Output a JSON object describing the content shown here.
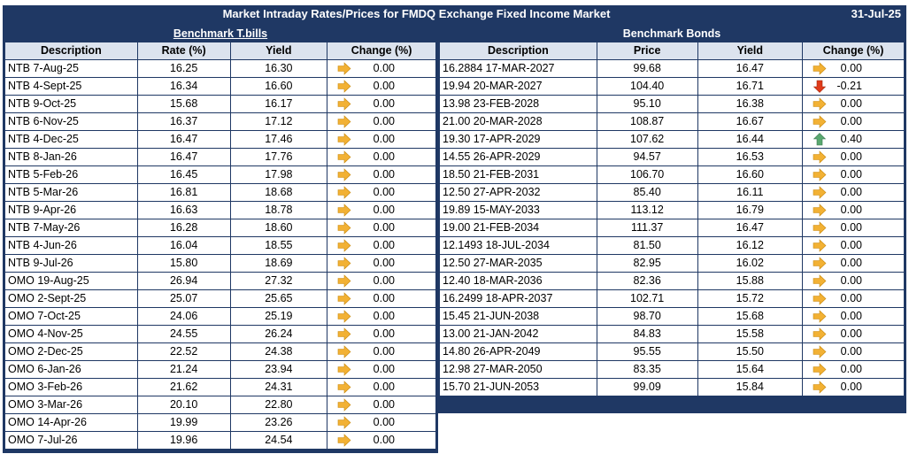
{
  "title": "Market Intraday Rates/Prices for FMDQ Exchange Fixed Income Market",
  "date": "31-Jul-25",
  "tbills": {
    "heading": "Benchmark T.bills",
    "columns": [
      "Description",
      "Rate (%)",
      "Yield",
      "Change (%)"
    ],
    "rows": [
      {
        "desc": "NTB 7-Aug-25",
        "rate": "16.25",
        "yield": "16.30",
        "dir": "flat",
        "change": "0.00"
      },
      {
        "desc": "NTB 4-Sept-25",
        "rate": "16.34",
        "yield": "16.60",
        "dir": "flat",
        "change": "0.00"
      },
      {
        "desc": "NTB 9-Oct-25",
        "rate": "15.68",
        "yield": "16.17",
        "dir": "flat",
        "change": "0.00"
      },
      {
        "desc": "NTB 6-Nov-25",
        "rate": "16.37",
        "yield": "17.12",
        "dir": "flat",
        "change": "0.00"
      },
      {
        "desc": "NTB 4-Dec-25",
        "rate": "16.47",
        "yield": "17.46",
        "dir": "flat",
        "change": "0.00"
      },
      {
        "desc": "NTB 8-Jan-26",
        "rate": "16.47",
        "yield": "17.76",
        "dir": "flat",
        "change": "0.00"
      },
      {
        "desc": "NTB 5-Feb-26",
        "rate": "16.45",
        "yield": "17.98",
        "dir": "flat",
        "change": "0.00"
      },
      {
        "desc": "NTB 5-Mar-26",
        "rate": "16.81",
        "yield": "18.68",
        "dir": "flat",
        "change": "0.00"
      },
      {
        "desc": "NTB 9-Apr-26",
        "rate": "16.63",
        "yield": "18.78",
        "dir": "flat",
        "change": "0.00"
      },
      {
        "desc": "NTB 7-May-26",
        "rate": "16.28",
        "yield": "18.60",
        "dir": "flat",
        "change": "0.00"
      },
      {
        "desc": "NTB 4-Jun-26",
        "rate": "16.04",
        "yield": "18.55",
        "dir": "flat",
        "change": "0.00"
      },
      {
        "desc": "NTB 9-Jul-26",
        "rate": "15.80",
        "yield": "18.69",
        "dir": "flat",
        "change": "0.00"
      },
      {
        "desc": "OMO 19-Aug-25",
        "rate": "26.94",
        "yield": "27.32",
        "dir": "flat",
        "change": "0.00"
      },
      {
        "desc": "OMO 2-Sept-25",
        "rate": "25.07",
        "yield": "25.65",
        "dir": "flat",
        "change": "0.00"
      },
      {
        "desc": "OMO 7-Oct-25",
        "rate": "24.06",
        "yield": "25.19",
        "dir": "flat",
        "change": "0.00"
      },
      {
        "desc": "OMO 4-Nov-25",
        "rate": "24.55",
        "yield": "26.24",
        "dir": "flat",
        "change": "0.00"
      },
      {
        "desc": "OMO 2-Dec-25",
        "rate": "22.52",
        "yield": "24.38",
        "dir": "flat",
        "change": "0.00"
      },
      {
        "desc": "OMO 6-Jan-26",
        "rate": "21.24",
        "yield": "23.94",
        "dir": "flat",
        "change": "0.00"
      },
      {
        "desc": "OMO 3-Feb-26",
        "rate": "21.62",
        "yield": "24.31",
        "dir": "flat",
        "change": "0.00"
      },
      {
        "desc": "OMO 3-Mar-26",
        "rate": "20.10",
        "yield": "22.80",
        "dir": "flat",
        "change": "0.00"
      },
      {
        "desc": "OMO 14-Apr-26",
        "rate": "19.99",
        "yield": "23.26",
        "dir": "flat",
        "change": "0.00"
      },
      {
        "desc": "OMO 7-Jul-26",
        "rate": "19.96",
        "yield": "24.54",
        "dir": "flat",
        "change": "0.00"
      }
    ]
  },
  "bonds": {
    "heading": "Benchmark Bonds",
    "columns": [
      "Description",
      "Price",
      "Yield",
      "Change (%)"
    ],
    "rows": [
      {
        "desc": "16.2884 17-MAR-2027",
        "price": "99.68",
        "yield": "16.47",
        "dir": "flat",
        "change": "0.00"
      },
      {
        "desc": "19.94 20-MAR-2027",
        "price": "104.40",
        "yield": "16.71",
        "dir": "down",
        "change": "-0.21"
      },
      {
        "desc": "13.98 23-FEB-2028",
        "price": "95.10",
        "yield": "16.38",
        "dir": "flat",
        "change": "0.00"
      },
      {
        "desc": "21.00 20-MAR-2028",
        "price": "108.87",
        "yield": "16.67",
        "dir": "flat",
        "change": "0.00"
      },
      {
        "desc": "19.30 17-APR-2029",
        "price": "107.62",
        "yield": "16.44",
        "dir": "up",
        "change": "0.40"
      },
      {
        "desc": "14.55 26-APR-2029",
        "price": "94.57",
        "yield": "16.53",
        "dir": "flat",
        "change": "0.00"
      },
      {
        "desc": "18.50 21-FEB-2031",
        "price": "106.70",
        "yield": "16.60",
        "dir": "flat",
        "change": "0.00"
      },
      {
        "desc": "12.50 27-APR-2032",
        "price": "85.40",
        "yield": "16.11",
        "dir": "flat",
        "change": "0.00"
      },
      {
        "desc": "19.89 15-MAY-2033",
        "price": "113.12",
        "yield": "16.79",
        "dir": "flat",
        "change": "0.00"
      },
      {
        "desc": "19.00 21-FEB-2034",
        "price": "111.37",
        "yield": "16.47",
        "dir": "flat",
        "change": "0.00"
      },
      {
        "desc": "12.1493 18-JUL-2034",
        "price": "81.50",
        "yield": "16.12",
        "dir": "flat",
        "change": "0.00"
      },
      {
        "desc": "12.50 27-MAR-2035",
        "price": "82.95",
        "yield": "16.02",
        "dir": "flat",
        "change": "0.00"
      },
      {
        "desc": "12.40 18-MAR-2036",
        "price": "82.36",
        "yield": "15.88",
        "dir": "flat",
        "change": "0.00"
      },
      {
        "desc": "16.2499 18-APR-2037",
        "price": "102.71",
        "yield": "15.72",
        "dir": "flat",
        "change": "0.00"
      },
      {
        "desc": "15.45 21-JUN-2038",
        "price": "98.70",
        "yield": "15.68",
        "dir": "flat",
        "change": "0.00"
      },
      {
        "desc": "13.00 21-JAN-2042",
        "price": "84.83",
        "yield": "15.58",
        "dir": "flat",
        "change": "0.00"
      },
      {
        "desc": "14.80 26-APR-2049",
        "price": "95.55",
        "yield": "15.50",
        "dir": "flat",
        "change": "0.00"
      },
      {
        "desc": "12.98 27-MAR-2050",
        "price": "83.35",
        "yield": "15.64",
        "dir": "flat",
        "change": "0.00"
      },
      {
        "desc": "15.70 21-JUN-2053",
        "price": "99.09",
        "yield": "15.84",
        "dir": "flat",
        "change": "0.00"
      }
    ]
  },
  "icon_colors": {
    "flat": "#f2b134",
    "down": "#e03b1a",
    "up": "#5aa870"
  }
}
